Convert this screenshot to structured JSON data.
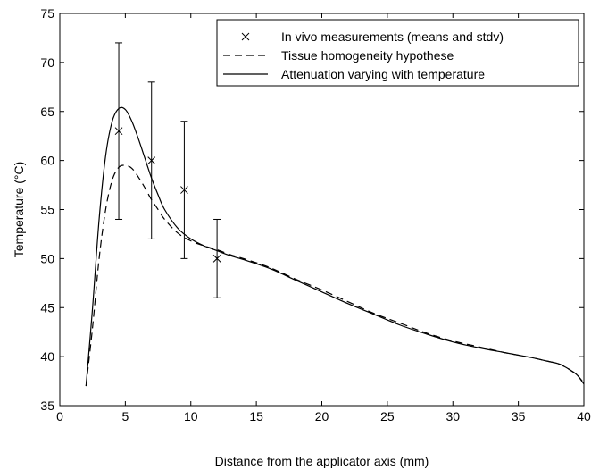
{
  "chart_data": {
    "type": "line",
    "xlabel": "Distance from the applicator axis (mm)",
    "ylabel": "Temperature (°C)",
    "xlim": [
      0,
      40
    ],
    "ylim": [
      35,
      75
    ],
    "xticks": [
      0,
      5,
      10,
      15,
      20,
      25,
      30,
      35,
      40
    ],
    "yticks": [
      35,
      40,
      45,
      50,
      55,
      60,
      65,
      70,
      75
    ],
    "xtick_labels": [
      "0",
      "5",
      "10",
      "15",
      "20",
      "25",
      "30",
      "35",
      "40"
    ],
    "ytick_labels": [
      "35",
      "40",
      "45",
      "50",
      "55",
      "60",
      "65",
      "70",
      "75"
    ],
    "grid": false,
    "legend_position": "top-right",
    "series": [
      {
        "name": "In vivo measurements (means and stdv)",
        "style": "markers-errorbars",
        "marker": "x",
        "color": "#000000",
        "x": [
          4.5,
          7,
          9.5,
          12
        ],
        "y": [
          63,
          60,
          57,
          50
        ],
        "y_low": [
          54,
          52,
          50,
          46
        ],
        "y_high": [
          72,
          68,
          64,
          54
        ]
      },
      {
        "name": "Tissue homogeneity hypothese",
        "style": "dashed",
        "color": "#000000",
        "x": [
          2,
          2.5,
          3,
          3.5,
          4,
          4.5,
          5,
          5.5,
          6,
          6.5,
          7,
          7.5,
          8,
          9,
          10,
          11,
          12,
          13,
          14,
          16,
          18,
          20,
          22,
          24,
          26,
          28,
          30,
          32,
          34,
          36,
          37,
          38,
          38.5,
          39,
          39.5,
          40
        ],
        "y": [
          37,
          43,
          50,
          55,
          58,
          59.3,
          59.5,
          59.2,
          58.3,
          57.2,
          56,
          55,
          54,
          52.6,
          51.8,
          51.3,
          50.9,
          50.4,
          50,
          49.1,
          47.9,
          46.8,
          45.6,
          44.4,
          43.4,
          42.4,
          41.6,
          41,
          40.4,
          39.9,
          39.6,
          39.3,
          39,
          38.6,
          38.1,
          37.3
        ]
      },
      {
        "name": "Attenuation varying with temperature",
        "style": "solid",
        "color": "#000000",
        "x": [
          2,
          2.5,
          3,
          3.5,
          4,
          4.5,
          5,
          5.5,
          6,
          6.5,
          7,
          7.5,
          8,
          9,
          10,
          11,
          12,
          13,
          14,
          16,
          18,
          20,
          22,
          24,
          26,
          28,
          30,
          32,
          34,
          36,
          37,
          38,
          38.5,
          39,
          39.5,
          40
        ],
        "y": [
          37,
          45,
          54,
          60.5,
          64,
          65.3,
          65.2,
          64,
          62.2,
          60.2,
          58.2,
          56.5,
          55,
          53.1,
          52,
          51.3,
          50.8,
          50.3,
          49.9,
          49,
          47.8,
          46.6,
          45.4,
          44.3,
          43.2,
          42.3,
          41.5,
          40.9,
          40.4,
          39.9,
          39.6,
          39.3,
          39,
          38.6,
          38.1,
          37.2
        ]
      }
    ]
  }
}
